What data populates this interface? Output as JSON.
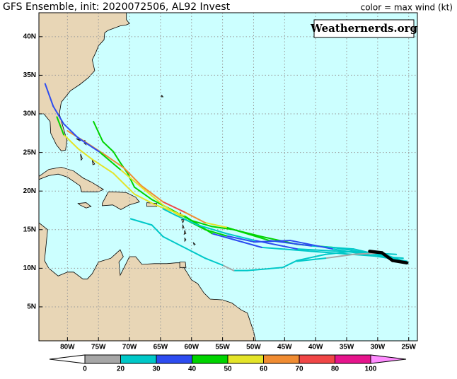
{
  "chart_data": {
    "type": "map",
    "title": "GFS Ensemble, init: 2020072506, AL92 Invest",
    "legend_title": "color = max wind (kt)",
    "watermark": "Weathernerds.org",
    "xlim": [
      84.6,
      23.6
    ],
    "ylim": [
      0.6,
      43.1
    ],
    "xticks": [
      {
        "value": 80,
        "label": "80W"
      },
      {
        "value": 75,
        "label": "75W"
      },
      {
        "value": 70,
        "label": "70W"
      },
      {
        "value": 65,
        "label": "65W"
      },
      {
        "value": 60,
        "label": "60W"
      },
      {
        "value": 55,
        "label": "55W"
      },
      {
        "value": 50,
        "label": "50W"
      },
      {
        "value": 45,
        "label": "45W"
      },
      {
        "value": 40,
        "label": "40W"
      },
      {
        "value": 35,
        "label": "35W"
      },
      {
        "value": 30,
        "label": "30W"
      },
      {
        "value": 25,
        "label": "25W"
      }
    ],
    "yticks": [
      {
        "value": 5,
        "label": "5N"
      },
      {
        "value": 10,
        "label": "10N"
      },
      {
        "value": 15,
        "label": "15N"
      },
      {
        "value": 20,
        "label": "20N"
      },
      {
        "value": 25,
        "label": "25N"
      },
      {
        "value": 30,
        "label": "30N"
      },
      {
        "value": 35,
        "label": "35N"
      },
      {
        "value": 40,
        "label": "40N"
      }
    ],
    "grid": true,
    "colorbar": {
      "bounds": [
        0,
        20,
        30,
        40,
        50,
        60,
        70,
        80,
        100
      ],
      "colors": [
        "#a6a6a6",
        "#00c8c8",
        "#2d4cf0",
        "#00d400",
        "#e4e428",
        "#f08c32",
        "#f04646",
        "#e6148c"
      ],
      "under": "#ffffff",
      "over": "#ff8cff"
    },
    "tracks": [
      {
        "lon": [
          25.1,
          28.2,
          33.9,
          38.4,
          43.0,
          45.3,
          51.0,
          53.2,
          55.0,
          57.8,
          61.2,
          64.6,
          66.4,
          69.8
        ],
        "lat": [
          10.7,
          11.6,
          12.2,
          11.8,
          11.0,
          10.1,
          9.7,
          9.7,
          10.4,
          11.3,
          12.7,
          14.1,
          15.6,
          16.4
        ],
        "wind": [
          25,
          25,
          25,
          25,
          25,
          25,
          25,
          15,
          25,
          25,
          25,
          25,
          25,
          25
        ]
      },
      {
        "lon": [
          25.3,
          31.6,
          37.3,
          43.0,
          48.7,
          53.2,
          56.7,
          60.1,
          63.5,
          66.4,
          69.2,
          70.3,
          71.5,
          72.6,
          74.3,
          75.8
        ],
        "lat": [
          10.9,
          12.0,
          12.7,
          13.1,
          14.1,
          15.0,
          15.4,
          16.2,
          17.7,
          18.9,
          20.5,
          22.3,
          23.7,
          25.1,
          26.4,
          29.0
        ],
        "wind": [
          25,
          25,
          45,
          45,
          45,
          45,
          45,
          45,
          45,
          45,
          45,
          45,
          45,
          45,
          45,
          45
        ]
      },
      {
        "lon": [
          25.3,
          33.9,
          40.7,
          47.5,
          54.4,
          57.8,
          61.2,
          64.6,
          68.1,
          70.9,
          73.8,
          77.2,
          80.0
        ],
        "lat": [
          10.9,
          12.5,
          12.9,
          13.6,
          15.3,
          15.9,
          17.3,
          18.6,
          20.7,
          23.0,
          24.6,
          26.4,
          27.8
        ],
        "wind": [
          25,
          25,
          35,
          45,
          55,
          65,
          72,
          65,
          65,
          65,
          65,
          65,
          55
        ]
      },
      {
        "lon": [
          25.3,
          37.3,
          44.1,
          49.8,
          54.4,
          57.8,
          61.2,
          64.6,
          68.1,
          71.5,
          74.9,
          78.3,
          80.6,
          82.3,
          83.6
        ],
        "lat": [
          10.9,
          12.5,
          13.6,
          13.4,
          14.2,
          15.0,
          16.4,
          18.2,
          20.5,
          22.8,
          25.1,
          26.9,
          28.7,
          31.0,
          33.9
        ],
        "wind": [
          25,
          35,
          35,
          35,
          45,
          45,
          55,
          55,
          55,
          45,
          35,
          35,
          35,
          35,
          35
        ]
      },
      {
        "lon": [
          25.9,
          40.7,
          48.7,
          56.7,
          61.2,
          65.8,
          69.2,
          72.6,
          76.0,
          78.3,
          80.6,
          81.7
        ],
        "lat": [
          11.3,
          12.2,
          12.7,
          14.5,
          16.8,
          18.2,
          19.6,
          22.3,
          24.1,
          25.5,
          27.3,
          29.6
        ],
        "wind": [
          25,
          25,
          35,
          45,
          55,
          55,
          55,
          55,
          55,
          55,
          45,
          45
        ]
      },
      {
        "lon": [
          27.0,
          36.2,
          43.0,
          49.8,
          54.4,
          59.0,
          62.4,
          64.6
        ],
        "lat": [
          11.8,
          12.2,
          12.5,
          13.6,
          14.5,
          15.6,
          16.8,
          17.7
        ],
        "wind": [
          25,
          25,
          35,
          25,
          25,
          25,
          25,
          25
        ]
      },
      {
        "lon": [
          29.3,
          33.9,
          38.4,
          43.0
        ],
        "lat": [
          12.0,
          11.8,
          11.3,
          10.9
        ],
        "wind": [
          15,
          15,
          25,
          25
        ]
      },
      {
        "lon": [
          31.3,
          29.3,
          27.6,
          25.3
        ],
        "lat": [
          12.2,
          12.0,
          11.0,
          10.7
        ],
        "color": "#000000"
      }
    ]
  }
}
